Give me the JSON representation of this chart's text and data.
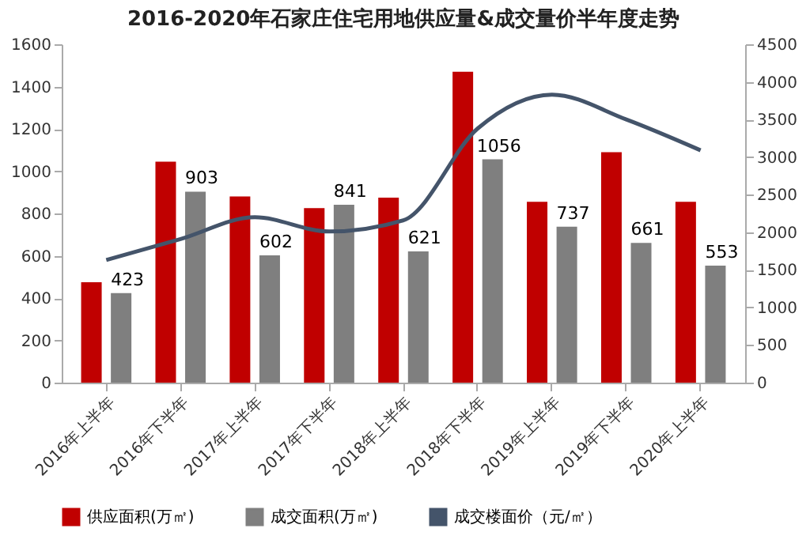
{
  "chart_data": {
    "type": "bar",
    "title": "2016-2020年石家庄住宅用地供应量&成交量价半年度走势",
    "categories": [
      "2016年上半年",
      "2016年下半年",
      "2017年上半年",
      "2017年下半年",
      "2018年上半年",
      "2018年下半年",
      "2019年上半年",
      "2019年下半年",
      "2020年上半年"
    ],
    "series": [
      {
        "name": "供应面积(万㎡)",
        "color": "#c00000",
        "values": [
          475,
          1045,
          880,
          825,
          875,
          1470,
          855,
          1090,
          855
        ]
      },
      {
        "name": "成交面积(万㎡)",
        "color": "#7f7f7f",
        "values": [
          423,
          903,
          602,
          841,
          621,
          1056,
          737,
          661,
          553
        ],
        "value_labels": [
          "423",
          "903",
          "602",
          "841",
          "621",
          "1056",
          "737",
          "661",
          "553"
        ]
      },
      {
        "name": "成交楼面价（元/㎡）",
        "type": "line",
        "axis": "y2",
        "color": "#44546a",
        "values": [
          1630,
          1910,
          2200,
          2010,
          2160,
          3380,
          3830,
          3500,
          3090
        ]
      }
    ],
    "ylim": [
      0,
      1600
    ],
    "yticks": [
      0,
      200,
      400,
      600,
      800,
      1000,
      1200,
      1400,
      1600
    ],
    "y2lim": [
      0,
      4500
    ],
    "y2ticks": [
      0,
      500,
      1000,
      1500,
      2000,
      2500,
      3000,
      3500,
      4000,
      4500
    ],
    "grid": false,
    "legend": "bottom",
    "marker": "none",
    "line_style": "solid"
  }
}
